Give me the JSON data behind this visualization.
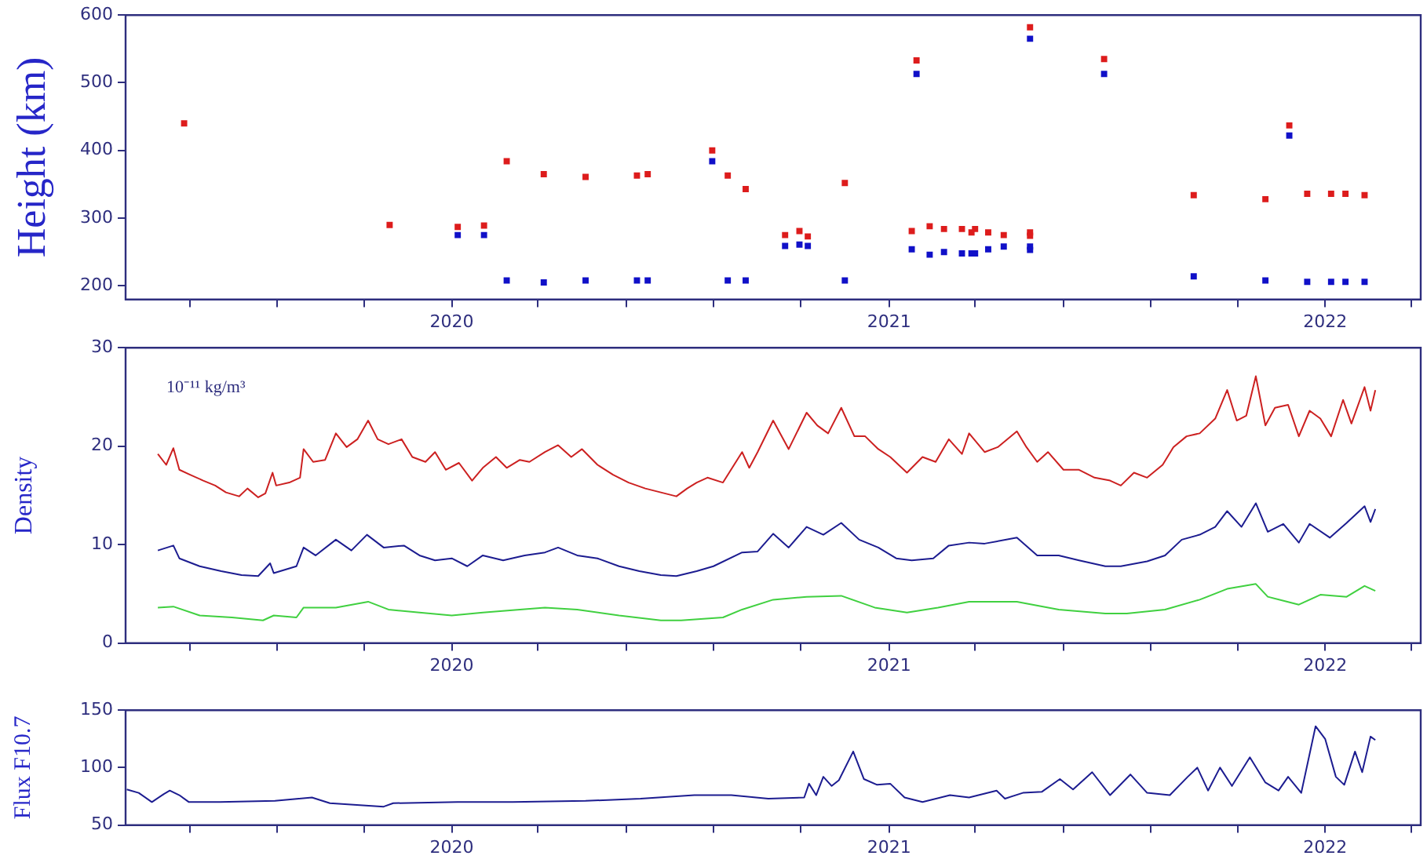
{
  "chart_data": [
    {
      "type": "scatter",
      "ylabel": "Height (km)",
      "marker": "square",
      "grid": false,
      "legend": false,
      "x": [
        "2019-05-22",
        "2019-11-10",
        "2020-01-06",
        "2020-01-28",
        "2020-02-16",
        "2020-03-18",
        "2020-04-22",
        "2020-06-04",
        "2020-06-13",
        "2020-08-06",
        "2020-08-19",
        "2020-09-03",
        "2020-10-06",
        "2020-10-18",
        "2020-10-25",
        "2020-11-25",
        "2021-01-20",
        "2021-01-24",
        "2021-02-04",
        "2021-02-16",
        "2021-03-03",
        "2021-03-11",
        "2021-03-14",
        "2021-03-25",
        "2021-04-07",
        "2021-04-29",
        "2021-04-29",
        "2021-04-29",
        "2021-06-30",
        "2021-09-13",
        "2021-11-12",
        "2021-12-02",
        "2021-12-17",
        "2022-01-06",
        "2022-01-18",
        "2022-02-03"
      ],
      "series": [
        {
          "color": "#dd1c1c",
          "values": [
            440,
            290,
            287,
            289,
            384,
            365,
            361,
            363,
            365,
            400,
            363,
            343,
            275,
            281,
            273,
            352,
            281,
            533,
            288,
            284,
            284,
            279,
            284,
            279,
            275,
            279,
            274,
            582,
            535,
            334,
            328,
            437,
            336,
            336,
            336,
            334
          ]
        },
        {
          "color": "#1010c8",
          "values": [
            null,
            null,
            275,
            275,
            208,
            205,
            208,
            208,
            208,
            384,
            208,
            208,
            259,
            261,
            259,
            208,
            254,
            513,
            246,
            250,
            248,
            248,
            248,
            254,
            258,
            258,
            253,
            565,
            513,
            214,
            208,
            422,
            206,
            206,
            206,
            206
          ]
        }
      ],
      "xlim": [
        "2019-04-03",
        "2022-03-22"
      ],
      "xticks": [
        {
          "value": "2019-05-27",
          "label": null
        },
        {
          "value": "2019-08-08",
          "label": null
        },
        {
          "value": "2019-10-20",
          "label": null
        },
        "2020",
        {
          "value": "2020-03-13",
          "label": null
        },
        {
          "value": "2020-05-26",
          "label": null
        },
        {
          "value": "2020-08-07",
          "label": null
        },
        {
          "value": "2020-10-19",
          "label": null
        },
        "2021",
        {
          "value": "2021-03-14",
          "label": null
        },
        {
          "value": "2021-05-27",
          "label": null
        },
        {
          "value": "2021-08-08",
          "label": null
        },
        {
          "value": "2021-10-20",
          "label": null
        },
        "2022",
        {
          "value": "2022-03-14",
          "label": null
        }
      ],
      "ylim": [
        180,
        600
      ],
      "yticks": [
        200,
        300,
        400,
        500,
        600
      ]
    },
    {
      "type": "line",
      "ylabel": "Density",
      "marker": "none",
      "grid": false,
      "legend": false,
      "annotations": [
        "10⁻¹¹ kg/m³"
      ],
      "series": [
        {
          "color": "#cc2020",
          "x": [
            "2019-04-30",
            "2019-05-07",
            "2019-05-13",
            "2019-05-18",
            "2019-05-27",
            "2019-06-07",
            "2019-06-17",
            "2019-06-26",
            "2019-07-07",
            "2019-07-14",
            "2019-07-23",
            "2019-07-29",
            "2019-08-04",
            "2019-08-07",
            "2019-08-18",
            "2019-08-27",
            "2019-08-30",
            "2019-09-07",
            "2019-09-17",
            "2019-09-26",
            "2019-10-05",
            "2019-10-14",
            "2019-10-23",
            "2019-10-31",
            "2019-11-09",
            "2019-11-20",
            "2019-11-29",
            "2019-12-10",
            "2019-12-18",
            "2019-12-27",
            "2020-01-07",
            "2020-01-18",
            "2020-01-27",
            "2020-02-07",
            "2020-02-16",
            "2020-02-27",
            "2020-03-06",
            "2020-03-19",
            "2020-03-30",
            "2020-04-10",
            "2020-04-19",
            "2020-05-02",
            "2020-05-15",
            "2020-05-28",
            "2020-06-11",
            "2020-06-24",
            "2020-07-07",
            "2020-07-16",
            "2020-07-24",
            "2020-08-02",
            "2020-08-15",
            "2020-08-31",
            "2020-09-06",
            "2020-09-13",
            "2020-09-26",
            "2020-10-09",
            "2020-10-24",
            "2020-11-02",
            "2020-11-11",
            "2020-11-22",
            "2020-12-03",
            "2020-12-12",
            "2020-12-23",
            "2021-01-02",
            "2021-01-16",
            "2021-01-29",
            "2021-02-09",
            "2021-02-20",
            "2021-03-03",
            "2021-03-09",
            "2021-03-22",
            "2021-04-02",
            "2021-04-18",
            "2021-04-26",
            "2021-05-05",
            "2021-05-14",
            "2021-05-27",
            "2021-06-09",
            "2021-06-22",
            "2021-07-05",
            "2021-07-14",
            "2021-07-25",
            "2021-08-05",
            "2021-08-18",
            "2021-08-27",
            "2021-09-07",
            "2021-09-18",
            "2021-10-01",
            "2021-10-11",
            "2021-10-19",
            "2021-10-27",
            "2021-11-04",
            "2021-11-12",
            "2021-11-20",
            "2021-12-01",
            "2021-12-10",
            "2021-12-19",
            "2021-12-28",
            "2022-01-06",
            "2022-01-16",
            "2022-01-23",
            "2022-02-03",
            "2022-02-08",
            "2022-02-12"
          ],
          "values": [
            19.2,
            18.1,
            19.8,
            17.6,
            17.1,
            16.5,
            16.0,
            15.3,
            14.9,
            15.7,
            14.8,
            15.2,
            17.3,
            16.0,
            16.3,
            16.8,
            19.7,
            18.4,
            18.6,
            21.3,
            19.9,
            20.7,
            22.6,
            20.7,
            20.2,
            20.7,
            18.9,
            18.4,
            19.4,
            17.6,
            18.3,
            16.5,
            17.8,
            18.9,
            17.8,
            18.6,
            18.4,
            19.4,
            20.1,
            18.9,
            19.7,
            18.1,
            17.1,
            16.3,
            15.7,
            15.3,
            14.9,
            15.7,
            16.3,
            16.8,
            16.3,
            19.4,
            17.8,
            19.4,
            22.6,
            19.7,
            23.4,
            22.1,
            21.3,
            23.9,
            21.0,
            21.0,
            19.7,
            18.9,
            17.3,
            18.9,
            18.4,
            20.7,
            19.2,
            21.3,
            19.4,
            19.9,
            21.5,
            19.9,
            18.4,
            19.4,
            17.6,
            17.6,
            16.8,
            16.5,
            16.0,
            17.3,
            16.8,
            18.1,
            19.9,
            21.0,
            21.3,
            22.8,
            25.7,
            22.6,
            23.1,
            27.1,
            22.1,
            23.9,
            24.2,
            21.0,
            23.6,
            22.8,
            21.0,
            24.7,
            22.3,
            26.0,
            23.6,
            25.7
          ]
        },
        {
          "color": "#1c1c90",
          "x": [
            "2019-04-30",
            "2019-05-13",
            "2019-05-18",
            "2019-06-04",
            "2019-06-22",
            "2019-07-09",
            "2019-07-23",
            "2019-08-02",
            "2019-08-05",
            "2019-08-24",
            "2019-08-30",
            "2019-09-09",
            "2019-09-26",
            "2019-10-09",
            "2019-10-22",
            "2019-11-05",
            "2019-11-22",
            "2019-12-05",
            "2019-12-18",
            "2020-01-01",
            "2020-01-14",
            "2020-01-27",
            "2020-02-13",
            "2020-03-02",
            "2020-03-19",
            "2020-03-30",
            "2020-04-15",
            "2020-05-02",
            "2020-05-20",
            "2020-06-06",
            "2020-06-24",
            "2020-07-07",
            "2020-07-24",
            "2020-08-07",
            "2020-08-31",
            "2020-09-13",
            "2020-09-26",
            "2020-10-09",
            "2020-10-24",
            "2020-11-07",
            "2020-11-22",
            "2020-12-07",
            "2020-12-23",
            "2021-01-07",
            "2021-01-20",
            "2021-02-07",
            "2021-02-20",
            "2021-03-09",
            "2021-03-22",
            "2021-04-18",
            "2021-05-05",
            "2021-05-23",
            "2021-06-09",
            "2021-07-01",
            "2021-07-14",
            "2021-08-05",
            "2021-08-20",
            "2021-09-03",
            "2021-09-18",
            "2021-10-01",
            "2021-10-11",
            "2021-10-23",
            "2021-11-04",
            "2021-11-14",
            "2021-11-27",
            "2021-12-10",
            "2021-12-19",
            "2022-01-05",
            "2022-01-19",
            "2022-02-03",
            "2022-02-08",
            "2022-02-12"
          ],
          "values": [
            9.4,
            9.9,
            8.6,
            7.8,
            7.3,
            6.9,
            6.8,
            8.1,
            7.1,
            7.8,
            9.7,
            8.9,
            10.5,
            9.4,
            11.0,
            9.7,
            9.9,
            8.9,
            8.4,
            8.6,
            7.8,
            8.9,
            8.4,
            8.9,
            9.2,
            9.7,
            8.9,
            8.6,
            7.8,
            7.3,
            6.9,
            6.8,
            7.3,
            7.8,
            9.2,
            9.3,
            11.1,
            9.7,
            11.8,
            11.0,
            12.2,
            10.5,
            9.7,
            8.6,
            8.4,
            8.6,
            9.9,
            10.2,
            10.1,
            10.7,
            8.9,
            8.9,
            8.4,
            7.8,
            7.8,
            8.3,
            8.9,
            10.5,
            11.0,
            11.8,
            13.4,
            11.8,
            14.2,
            11.3,
            12.1,
            10.2,
            12.1,
            10.7,
            12.2,
            13.9,
            12.3,
            13.6
          ]
        },
        {
          "color": "#40d040",
          "x": [
            "2019-04-30",
            "2019-05-13",
            "2019-06-04",
            "2019-07-01",
            "2019-07-27",
            "2019-08-05",
            "2019-08-24",
            "2019-08-30",
            "2019-09-26",
            "2019-10-23",
            "2019-11-09",
            "2019-12-05",
            "2020-01-01",
            "2020-01-27",
            "2020-02-27",
            "2020-03-19",
            "2020-04-15",
            "2020-05-20",
            "2020-06-24",
            "2020-07-11",
            "2020-08-15",
            "2020-08-31",
            "2020-09-26",
            "2020-10-24",
            "2020-11-22",
            "2020-12-20",
            "2021-01-16",
            "2021-02-11",
            "2021-03-09",
            "2021-04-18",
            "2021-05-23",
            "2021-07-01",
            "2021-07-19",
            "2021-08-20",
            "2021-09-18",
            "2021-10-11",
            "2021-11-04",
            "2021-11-14",
            "2021-12-10",
            "2021-12-28",
            "2022-01-19",
            "2022-02-03",
            "2022-02-12"
          ],
          "values": [
            3.6,
            3.7,
            2.8,
            2.6,
            2.3,
            2.8,
            2.6,
            3.6,
            3.6,
            4.2,
            3.4,
            3.1,
            2.8,
            3.1,
            3.4,
            3.6,
            3.4,
            2.8,
            2.3,
            2.3,
            2.6,
            3.4,
            4.4,
            4.7,
            4.8,
            3.6,
            3.1,
            3.6,
            4.2,
            4.2,
            3.4,
            3.0,
            3.0,
            3.4,
            4.4,
            5.5,
            6.0,
            4.7,
            3.9,
            4.9,
            4.7,
            5.8,
            5.3
          ]
        }
      ],
      "xlim": [
        "2019-04-03",
        "2022-03-22"
      ],
      "xticks": [
        {
          "value": "2019-05-27",
          "label": null
        },
        {
          "value": "2019-08-08",
          "label": null
        },
        {
          "value": "2019-10-20",
          "label": null
        },
        "2020",
        {
          "value": "2020-03-13",
          "label": null
        },
        {
          "value": "2020-05-26",
          "label": null
        },
        {
          "value": "2020-08-07",
          "label": null
        },
        {
          "value": "2020-10-19",
          "label": null
        },
        "2021",
        {
          "value": "2021-03-14",
          "label": null
        },
        {
          "value": "2021-05-27",
          "label": null
        },
        {
          "value": "2021-08-08",
          "label": null
        },
        {
          "value": "2021-10-20",
          "label": null
        },
        "2022",
        {
          "value": "2022-03-14",
          "label": null
        }
      ],
      "ylim": [
        0,
        30
      ],
      "yticks": [
        0,
        10,
        20,
        30
      ]
    },
    {
      "type": "line",
      "ylabel": "Flux F10.7",
      "marker": "none",
      "grid": false,
      "legend": false,
      "series": [
        {
          "color": "#1c1c90",
          "x": [
            "2019-04-04",
            "2019-04-14",
            "2019-04-25",
            "2019-05-05",
            "2019-05-10",
            "2019-05-18",
            "2019-05-26",
            "2019-06-21",
            "2019-08-06",
            "2019-09-06",
            "2019-09-21",
            "2019-11-05",
            "2019-11-13",
            "2020-01-06",
            "2020-02-21",
            "2020-04-22",
            "2020-06-07",
            "2020-07-22",
            "2020-08-22",
            "2020-09-22",
            "2020-10-22",
            "2020-10-26",
            "2020-11-01",
            "2020-11-07",
            "2020-11-14",
            "2020-11-20",
            "2020-12-02",
            "2020-12-11",
            "2020-12-22",
            "2021-01-02",
            "2021-01-14",
            "2021-01-29",
            "2021-02-21",
            "2021-03-09",
            "2021-04-01",
            "2021-04-08",
            "2021-04-23",
            "2021-05-09",
            "2021-05-24",
            "2021-06-04",
            "2021-06-20",
            "2021-07-05",
            "2021-07-22",
            "2021-08-05",
            "2021-08-24",
            "2021-09-08",
            "2021-09-16",
            "2021-09-25",
            "2021-10-05",
            "2021-10-15",
            "2021-10-30",
            "2021-11-12",
            "2021-11-23",
            "2021-12-01",
            "2021-12-12",
            "2021-12-24",
            "2022-01-01",
            "2022-01-10",
            "2022-01-17",
            "2022-01-26",
            "2022-02-01",
            "2022-02-08",
            "2022-02-12"
          ],
          "values": [
            81,
            78,
            70,
            77,
            80,
            76,
            70,
            70,
            71,
            74,
            69,
            66,
            69,
            70,
            70,
            71,
            73,
            76,
            76,
            73,
            74,
            86,
            76,
            92,
            84,
            89,
            114,
            90,
            85,
            86,
            74,
            70,
            76,
            74,
            80,
            73,
            78,
            79,
            90,
            81,
            96,
            76,
            94,
            78,
            76,
            92,
            100,
            80,
            100,
            84,
            109,
            87,
            80,
            92,
            78,
            136,
            125,
            92,
            85,
            114,
            96,
            127,
            124
          ]
        }
      ],
      "xlim": [
        "2019-04-03",
        "2022-03-22"
      ],
      "xticks": [
        {
          "value": "2019-05-27",
          "label": null
        },
        {
          "value": "2019-08-08",
          "label": null
        },
        {
          "value": "2019-10-20",
          "label": null
        },
        "2020",
        {
          "value": "2020-03-13",
          "label": null
        },
        {
          "value": "2020-05-26",
          "label": null
        },
        {
          "value": "2020-08-07",
          "label": null
        },
        {
          "value": "2020-10-19",
          "label": null
        },
        "2021",
        {
          "value": "2021-03-14",
          "label": null
        },
        {
          "value": "2021-05-27",
          "label": null
        },
        {
          "value": "2021-08-08",
          "label": null
        },
        {
          "value": "2021-10-20",
          "label": null
        },
        "2022",
        {
          "value": "2022-03-14",
          "label": null
        }
      ],
      "ylim": [
        50,
        150
      ],
      "yticks": [
        50,
        100,
        150
      ]
    }
  ]
}
